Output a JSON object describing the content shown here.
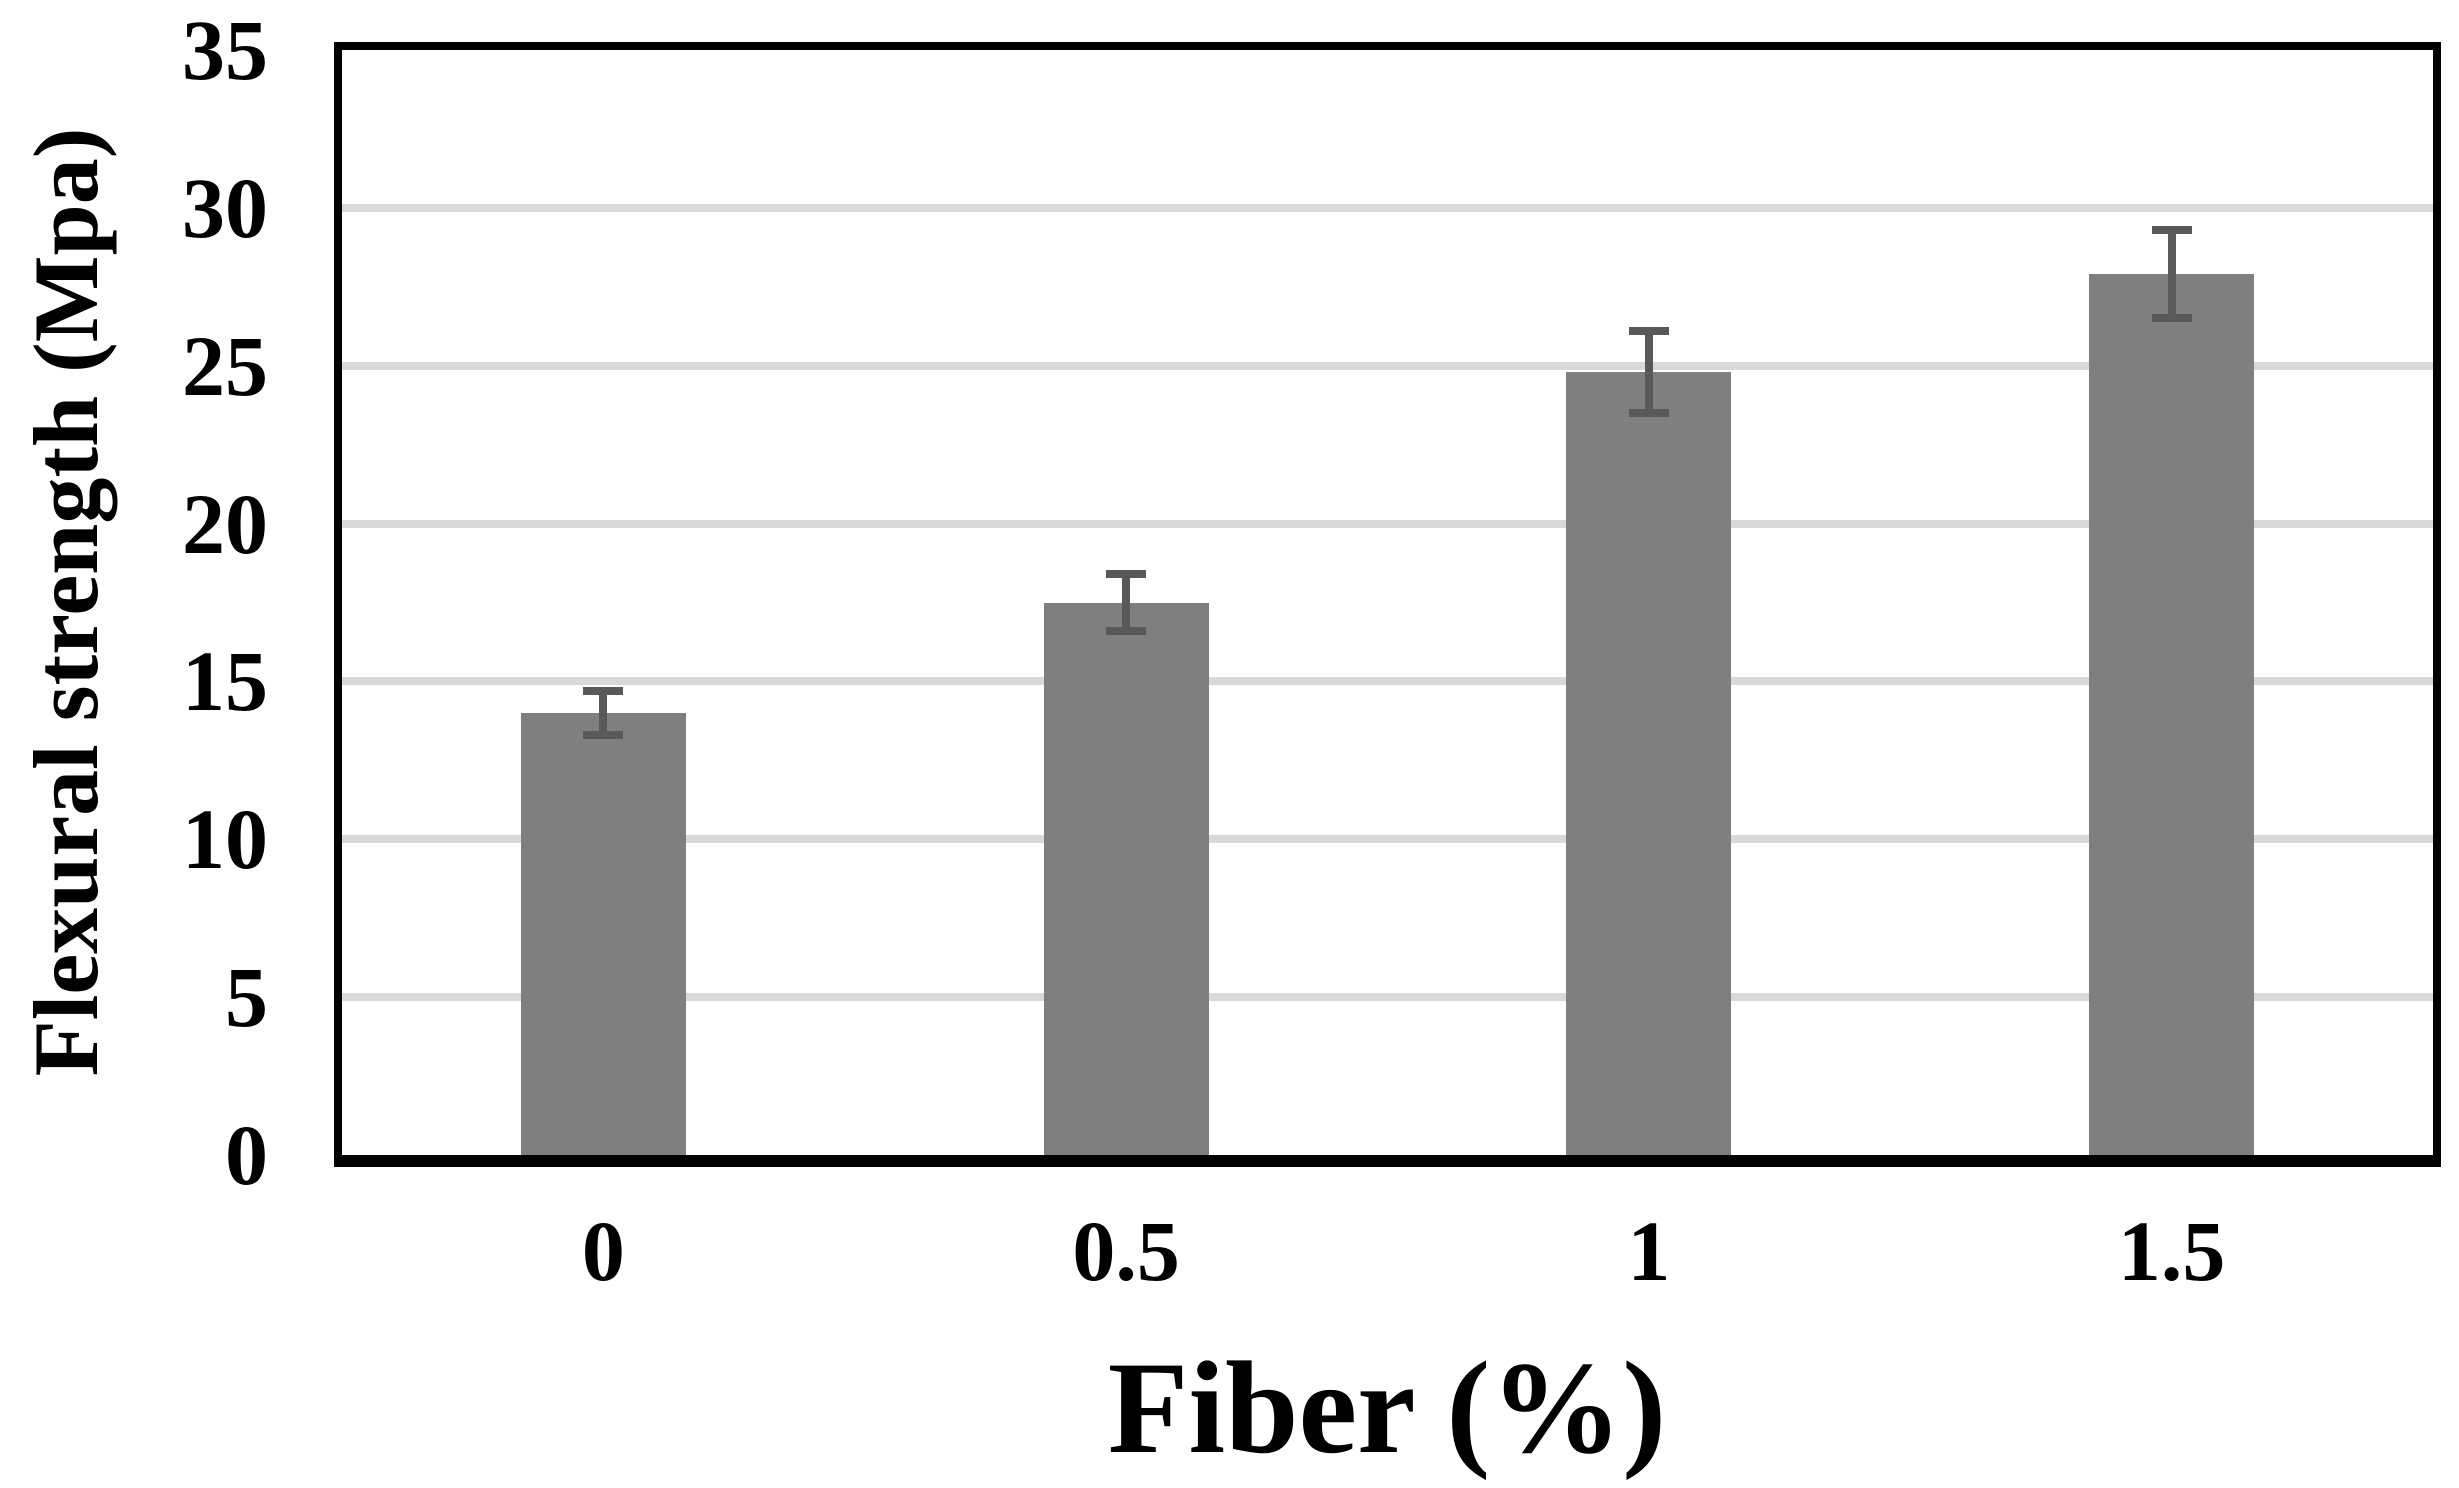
{
  "chart_data": {
    "type": "bar",
    "categories": [
      "0",
      "0.5",
      "1",
      "1.5"
    ],
    "values": [
      14.0,
      17.5,
      24.8,
      27.9
    ],
    "error_bars": [
      0.7,
      0.9,
      1.3,
      1.4
    ],
    "title": "",
    "xlabel": "Fiber (%)",
    "ylabel": "Flexural strength (Mpa)",
    "ylim": [
      0,
      35
    ],
    "yticks": [
      0,
      5,
      10,
      15,
      20,
      25,
      30,
      35
    ],
    "grid": "horizontal",
    "legend": "none",
    "bar_color": "#7F7F7F",
    "error_bar_color": "#595959",
    "gridline_color": "#D9D9D9",
    "axis_color": "#000000",
    "background_color": "#FFFFFF"
  }
}
